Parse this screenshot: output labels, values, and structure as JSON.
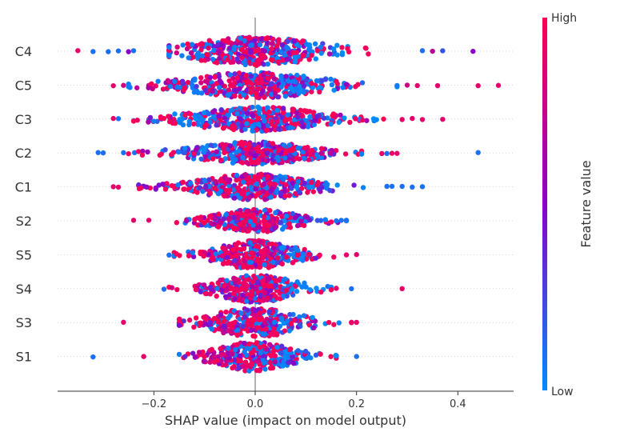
{
  "chart_data": {
    "type": "scatter",
    "subtype": "shap-beeswarm",
    "title": "",
    "xlabel": "SHAP value (impact on model output)",
    "ylabel": "",
    "xlim": [
      -0.39,
      0.51
    ],
    "xticks": [
      -0.2,
      0.0,
      0.2,
      0.4
    ],
    "xtick_labels": [
      "−0.2",
      "0.0",
      "0.2",
      "0.4"
    ],
    "features": [
      "C4",
      "C5",
      "C3",
      "C2",
      "C1",
      "S2",
      "S5",
      "S4",
      "S3",
      "S1"
    ],
    "series": [
      {
        "name": "C4",
        "min": -0.35,
        "max": 0.43,
        "core_lo": -0.17,
        "core_hi": 0.28,
        "spread": 0.09,
        "peak_height": 0.42,
        "n": 420,
        "low_bias": "positive",
        "outliers": [
          [
            -0.35,
            0.9
          ],
          [
            -0.32,
            0.1
          ],
          [
            -0.29,
            0.1
          ],
          [
            -0.27,
            0.1
          ],
          [
            -0.25,
            0.5
          ],
          [
            -0.24,
            0.1
          ],
          [
            0.33,
            0.1
          ],
          [
            0.35,
            0.7
          ],
          [
            0.37,
            0.2
          ],
          [
            0.43,
            0.5
          ]
        ]
      },
      {
        "name": "C5",
        "min": -0.28,
        "max": 0.48,
        "core_lo": -0.25,
        "core_hi": 0.28,
        "spread": 0.06,
        "peak_height": 0.38,
        "n": 420,
        "low_bias": "positive",
        "outliers": [
          [
            -0.28,
            0.9
          ],
          [
            -0.26,
            0.8
          ],
          [
            0.3,
            0.8
          ],
          [
            0.32,
            0.9
          ],
          [
            0.36,
            0.9
          ],
          [
            0.44,
            0.9
          ],
          [
            0.48,
            0.9
          ]
        ]
      },
      {
        "name": "C3",
        "min": -0.28,
        "max": 0.37,
        "core_lo": -0.24,
        "core_hi": 0.28,
        "spread": 0.0,
        "peak_height": 0.36,
        "n": 420,
        "low_bias": "neutral",
        "outliers": [
          [
            -0.28,
            0.9
          ],
          [
            -0.27,
            0.1
          ],
          [
            0.29,
            0.9
          ],
          [
            0.31,
            0.9
          ],
          [
            0.33,
            0.9
          ],
          [
            0.37,
            0.9
          ]
        ]
      },
      {
        "name": "C2",
        "min": -0.31,
        "max": 0.44,
        "core_lo": -0.25,
        "core_hi": 0.21,
        "spread": -0.03,
        "peak_height": 0.33,
        "n": 400,
        "low_bias": "negative",
        "outliers": [
          [
            -0.31,
            0.1
          ],
          [
            -0.3,
            0.1
          ],
          [
            -0.26,
            0.1
          ],
          [
            0.25,
            0.9
          ],
          [
            0.26,
            0.1
          ],
          [
            0.27,
            0.9
          ],
          [
            0.28,
            0.9
          ],
          [
            0.44,
            0.1
          ]
        ]
      },
      {
        "name": "C1",
        "min": -0.28,
        "max": 0.33,
        "core_lo": -0.23,
        "core_hi": 0.23,
        "spread": -0.02,
        "peak_height": 0.38,
        "n": 380,
        "low_bias": "positive",
        "outliers": [
          [
            -0.28,
            0.9
          ],
          [
            -0.27,
            0.9
          ],
          [
            0.26,
            0.1
          ],
          [
            0.27,
            0.1
          ],
          [
            0.29,
            0.1
          ],
          [
            0.31,
            0.1
          ],
          [
            0.33,
            0.1
          ]
        ]
      },
      {
        "name": "S2",
        "min": -0.24,
        "max": 0.18,
        "core_lo": -0.16,
        "core_hi": 0.18,
        "spread": 0.0,
        "peak_height": 0.34,
        "n": 320,
        "low_bias": "positive",
        "outliers": [
          [
            -0.24,
            0.9
          ],
          [
            -0.21,
            0.9
          ],
          [
            0.16,
            0.1
          ],
          [
            0.17,
            0.1
          ],
          [
            0.18,
            0.1
          ]
        ]
      },
      {
        "name": "S5",
        "min": -0.17,
        "max": 0.2,
        "core_lo": -0.16,
        "core_hi": 0.16,
        "spread": 0.0,
        "peak_height": 0.42,
        "n": 330,
        "low_bias": "positive",
        "outliers": [
          [
            -0.17,
            0.1
          ],
          [
            0.18,
            0.9
          ],
          [
            0.2,
            0.9
          ]
        ]
      },
      {
        "name": "S4",
        "min": -0.18,
        "max": 0.29,
        "core_lo": -0.17,
        "core_hi": 0.15,
        "spread": 0.0,
        "peak_height": 0.4,
        "n": 320,
        "low_bias": "positive",
        "outliers": [
          [
            -0.18,
            0.1
          ],
          [
            0.16,
            0.9
          ],
          [
            0.19,
            0.1
          ],
          [
            0.29,
            0.9
          ]
        ]
      },
      {
        "name": "S3",
        "min": -0.26,
        "max": 0.2,
        "core_lo": -0.15,
        "core_hi": 0.19,
        "spread": 0.0,
        "peak_height": 0.42,
        "n": 320,
        "low_bias": "positive",
        "outliers": [
          [
            -0.26,
            0.9
          ],
          [
            0.19,
            0.9
          ],
          [
            0.2,
            0.9
          ]
        ]
      },
      {
        "name": "S1",
        "min": -0.32,
        "max": 0.2,
        "core_lo": -0.15,
        "core_hi": 0.16,
        "spread": 0.0,
        "peak_height": 0.44,
        "n": 320,
        "low_bias": "positive",
        "outliers": [
          [
            -0.32,
            0.1
          ],
          [
            -0.22,
            0.9
          ],
          [
            0.2,
            0.1
          ]
        ]
      }
    ],
    "colorbar": {
      "title": "Feature value",
      "high_label": "High",
      "low_label": "Low",
      "high_color": "#ff0052",
      "mid_color": "#8a00c9",
      "low_color": "#008bfb"
    },
    "zero_line_color": "#999999",
    "grid": false,
    "legend": "colorbar-right"
  }
}
